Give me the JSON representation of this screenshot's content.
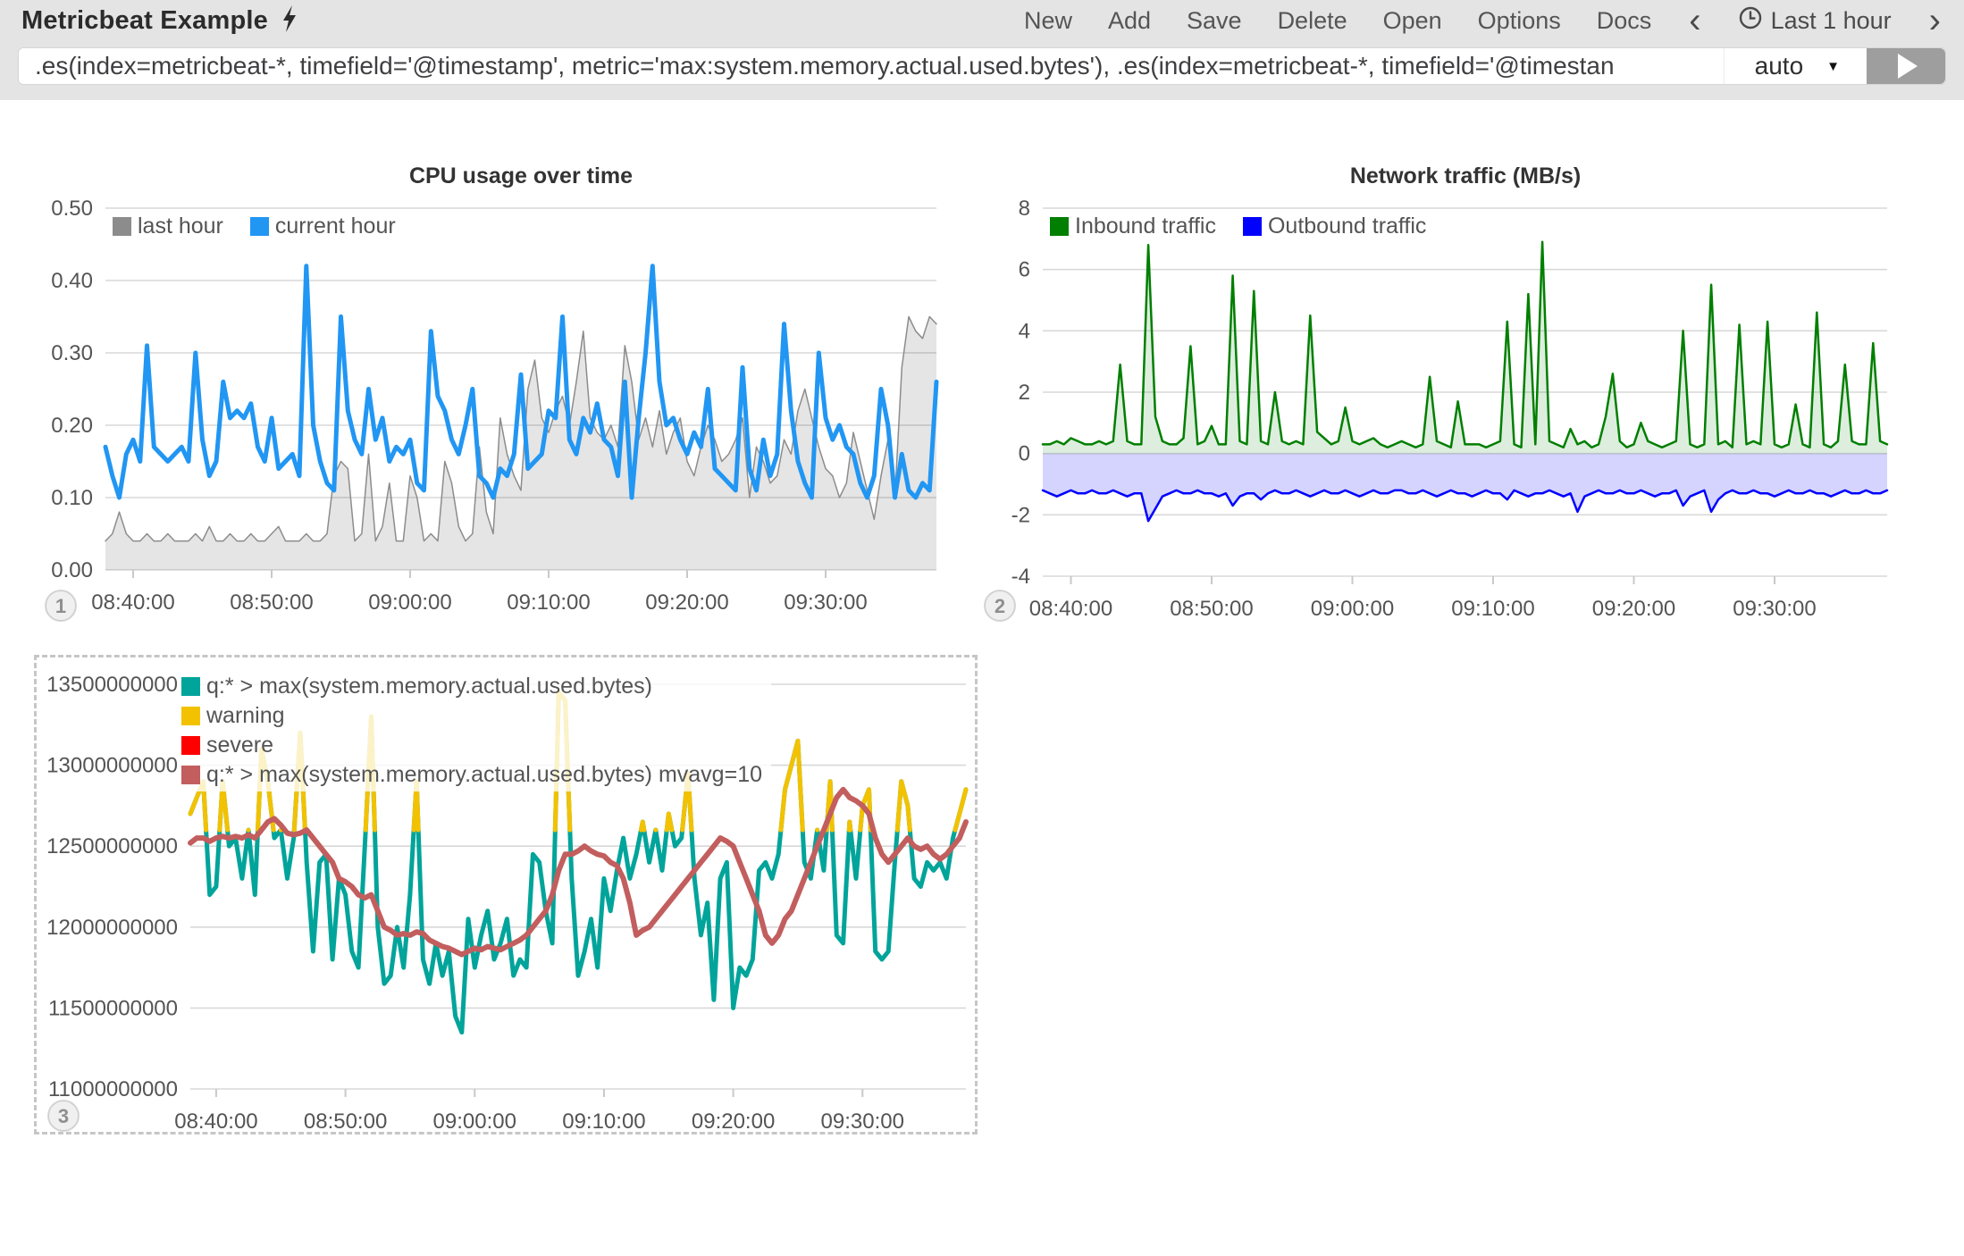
{
  "navbar": {
    "title": "Metricbeat Example",
    "menu": [
      {
        "label": "New"
      },
      {
        "label": "Add"
      },
      {
        "label": "Save"
      },
      {
        "label": "Delete"
      },
      {
        "label": "Open"
      },
      {
        "label": "Options"
      },
      {
        "label": "Docs"
      }
    ],
    "prev_arrow": "‹",
    "next_arrow": "›",
    "time_range": "Last 1 hour"
  },
  "query_bar": {
    "value": ".es(index=metricbeat-*, timefield='@timestamp', metric='max:system.memory.actual.used.bytes'), .es(index=metricbeat-*, timefield='@timestan",
    "interval": "auto",
    "caret": "▼"
  },
  "colors": {
    "header_bg": "#e4e4e4",
    "cpu_current": "#2196f3",
    "cpu_last_fill": "#e8e8e8",
    "cpu_last_stroke": "#8c8c8c",
    "inbound_green": "#007f00",
    "outbound_blue": "#0000ff",
    "memory_teal": "#00a49a",
    "warning_yellow": "#f2c200",
    "severe_red": "#ff0000",
    "mvavg_brick": "#c25e5e"
  },
  "chart_data": [
    {
      "type": "line",
      "panel_number": "1",
      "title": "CPU usage over time",
      "x_span_minutes": 60,
      "ylim": [
        0,
        0.5
      ],
      "yticks": [
        {
          "value": 0.5,
          "label": "0.50"
        },
        {
          "value": 0.4,
          "label": "0.40"
        },
        {
          "value": 0.3,
          "label": "0.30"
        },
        {
          "value": 0.2,
          "label": "0.20"
        },
        {
          "value": 0.1,
          "label": "0.10"
        },
        {
          "value": 0.0,
          "label": "0.00"
        }
      ],
      "xticks": [
        {
          "minute": 2,
          "label": "08:40:00"
        },
        {
          "minute": 12,
          "label": "08:50:00"
        },
        {
          "minute": 22,
          "label": "09:00:00"
        },
        {
          "minute": 32,
          "label": "09:10:00"
        },
        {
          "minute": 42,
          "label": "09:20:00"
        },
        {
          "minute": 52,
          "label": "09:30:00"
        }
      ],
      "legend_layout": "row",
      "legend": [
        {
          "label": "last hour",
          "color": "#8c8c8c"
        },
        {
          "label": "current hour",
          "color": "#2196f3"
        }
      ],
      "series": [
        {
          "name": "last hour",
          "type": "area",
          "color": "#8c8c8c",
          "fill": "rgba(0,0,0,0.10)",
          "width": 1.5,
          "values": [
            0.04,
            0.05,
            0.08,
            0.05,
            0.04,
            0.04,
            0.05,
            0.04,
            0.04,
            0.05,
            0.04,
            0.04,
            0.04,
            0.05,
            0.04,
            0.06,
            0.04,
            0.04,
            0.05,
            0.04,
            0.04,
            0.05,
            0.04,
            0.04,
            0.05,
            0.06,
            0.04,
            0.04,
            0.04,
            0.05,
            0.04,
            0.04,
            0.05,
            0.13,
            0.15,
            0.14,
            0.04,
            0.05,
            0.16,
            0.04,
            0.06,
            0.12,
            0.04,
            0.04,
            0.13,
            0.1,
            0.04,
            0.05,
            0.04,
            0.15,
            0.12,
            0.06,
            0.04,
            0.05,
            0.17,
            0.08,
            0.05,
            0.21,
            0.16,
            0.13,
            0.11,
            0.25,
            0.29,
            0.21,
            0.19,
            0.22,
            0.24,
            0.2,
            0.26,
            0.33,
            0.21,
            0.19,
            0.18,
            0.2,
            0.17,
            0.31,
            0.26,
            0.18,
            0.21,
            0.17,
            0.22,
            0.16,
            0.19,
            0.21,
            0.15,
            0.13,
            0.17,
            0.2,
            0.18,
            0.15,
            0.16,
            0.18,
            0.21,
            0.1,
            0.17,
            0.15,
            0.12,
            0.13,
            0.18,
            0.16,
            0.22,
            0.25,
            0.21,
            0.17,
            0.14,
            0.13,
            0.1,
            0.12,
            0.19,
            0.15,
            0.11,
            0.07,
            0.13,
            0.18,
            0.1,
            0.28,
            0.35,
            0.33,
            0.32,
            0.35,
            0.34
          ]
        },
        {
          "name": "current hour",
          "type": "line",
          "color": "#2196f3",
          "width": 5,
          "values": [
            0.17,
            0.13,
            0.1,
            0.16,
            0.18,
            0.15,
            0.31,
            0.17,
            0.16,
            0.15,
            0.16,
            0.17,
            0.15,
            0.3,
            0.18,
            0.13,
            0.15,
            0.26,
            0.21,
            0.22,
            0.21,
            0.23,
            0.17,
            0.15,
            0.21,
            0.14,
            0.15,
            0.16,
            0.13,
            0.42,
            0.2,
            0.15,
            0.12,
            0.11,
            0.35,
            0.22,
            0.18,
            0.16,
            0.25,
            0.18,
            0.21,
            0.15,
            0.17,
            0.16,
            0.18,
            0.12,
            0.11,
            0.33,
            0.24,
            0.22,
            0.18,
            0.16,
            0.2,
            0.25,
            0.13,
            0.12,
            0.1,
            0.14,
            0.13,
            0.16,
            0.27,
            0.14,
            0.15,
            0.16,
            0.22,
            0.21,
            0.35,
            0.18,
            0.16,
            0.21,
            0.19,
            0.23,
            0.18,
            0.17,
            0.13,
            0.26,
            0.1,
            0.21,
            0.3,
            0.42,
            0.26,
            0.2,
            0.21,
            0.18,
            0.16,
            0.19,
            0.17,
            0.25,
            0.14,
            0.13,
            0.12,
            0.11,
            0.28,
            0.14,
            0.11,
            0.18,
            0.13,
            0.16,
            0.34,
            0.22,
            0.15,
            0.12,
            0.1,
            0.3,
            0.21,
            0.18,
            0.2,
            0.17,
            0.16,
            0.12,
            0.1,
            0.13,
            0.25,
            0.2,
            0.1,
            0.16,
            0.11,
            0.1,
            0.12,
            0.11,
            0.26
          ]
        }
      ]
    },
    {
      "type": "area",
      "panel_number": "2",
      "title": "Network traffic (MB/s)",
      "x_span_minutes": 60,
      "ylim": [
        -4,
        8
      ],
      "yticks": [
        {
          "value": 8,
          "label": "8"
        },
        {
          "value": 6,
          "label": "6"
        },
        {
          "value": 4,
          "label": "4"
        },
        {
          "value": 2,
          "label": "2"
        },
        {
          "value": 0,
          "label": "0"
        },
        {
          "value": -2,
          "label": "-2"
        },
        {
          "value": -4,
          "label": "-4"
        }
      ],
      "xticks": [
        {
          "minute": 2,
          "label": "08:40:00"
        },
        {
          "minute": 12,
          "label": "08:50:00"
        },
        {
          "minute": 22,
          "label": "09:00:00"
        },
        {
          "minute": 32,
          "label": "09:10:00"
        },
        {
          "minute": 42,
          "label": "09:20:00"
        },
        {
          "minute": 52,
          "label": "09:30:00"
        }
      ],
      "legend_layout": "row",
      "legend": [
        {
          "label": "Inbound traffic",
          "color": "#007f00"
        },
        {
          "label": "Outbound traffic",
          "color": "#0000ff"
        }
      ],
      "series": [
        {
          "name": "Inbound traffic",
          "type": "area",
          "color": "#007f00",
          "fill": "rgba(0,127,0,0.13)",
          "width": 2.5,
          "values": [
            0.3,
            0.3,
            0.4,
            0.3,
            0.5,
            0.4,
            0.3,
            0.3,
            0.4,
            0.3,
            0.4,
            2.9,
            0.4,
            0.3,
            0.3,
            6.8,
            1.2,
            0.4,
            0.3,
            0.3,
            0.5,
            3.5,
            0.3,
            0.4,
            0.9,
            0.3,
            0.3,
            5.8,
            0.4,
            0.3,
            5.3,
            0.4,
            0.3,
            2.0,
            0.4,
            0.3,
            0.4,
            0.3,
            4.5,
            0.7,
            0.5,
            0.3,
            0.4,
            1.5,
            0.4,
            0.3,
            0.4,
            0.5,
            0.3,
            0.2,
            0.3,
            0.4,
            0.3,
            0.2,
            0.3,
            2.5,
            0.4,
            0.3,
            0.2,
            1.7,
            0.3,
            0.3,
            0.3,
            0.2,
            0.3,
            0.4,
            4.3,
            0.3,
            0.2,
            5.2,
            0.3,
            6.9,
            0.4,
            0.3,
            0.2,
            0.8,
            0.3,
            0.4,
            0.2,
            0.3,
            1.2,
            2.6,
            0.4,
            0.2,
            0.3,
            1.0,
            0.4,
            0.3,
            0.2,
            0.3,
            0.4,
            4.0,
            0.3,
            0.2,
            0.3,
            5.5,
            0.3,
            0.4,
            0.2,
            4.2,
            0.3,
            0.4,
            0.3,
            4.3,
            0.3,
            0.2,
            0.3,
            1.6,
            0.3,
            0.2,
            4.6,
            0.3,
            0.2,
            0.4,
            2.9,
            0.4,
            0.3,
            0.3,
            3.6,
            0.4,
            0.3
          ]
        },
        {
          "name": "Outbound traffic",
          "type": "area",
          "color": "#0000ff",
          "fill": "rgba(0,0,255,0.17)",
          "width": 2.5,
          "values": [
            -1.2,
            -1.3,
            -1.4,
            -1.3,
            -1.2,
            -1.3,
            -1.3,
            -1.2,
            -1.3,
            -1.3,
            -1.2,
            -1.3,
            -1.4,
            -1.3,
            -1.3,
            -2.2,
            -1.8,
            -1.4,
            -1.3,
            -1.2,
            -1.3,
            -1.3,
            -1.2,
            -1.3,
            -1.3,
            -1.4,
            -1.3,
            -1.7,
            -1.4,
            -1.3,
            -1.3,
            -1.5,
            -1.3,
            -1.2,
            -1.3,
            -1.3,
            -1.2,
            -1.3,
            -1.4,
            -1.3,
            -1.2,
            -1.3,
            -1.3,
            -1.2,
            -1.3,
            -1.4,
            -1.3,
            -1.2,
            -1.3,
            -1.3,
            -1.2,
            -1.2,
            -1.3,
            -1.3,
            -1.2,
            -1.3,
            -1.4,
            -1.3,
            -1.2,
            -1.3,
            -1.3,
            -1.4,
            -1.3,
            -1.2,
            -1.3,
            -1.3,
            -1.5,
            -1.2,
            -1.3,
            -1.4,
            -1.3,
            -1.3,
            -1.2,
            -1.3,
            -1.4,
            -1.3,
            -1.9,
            -1.4,
            -1.3,
            -1.2,
            -1.3,
            -1.3,
            -1.2,
            -1.3,
            -1.3,
            -1.2,
            -1.3,
            -1.4,
            -1.3,
            -1.3,
            -1.2,
            -1.7,
            -1.4,
            -1.3,
            -1.2,
            -1.9,
            -1.5,
            -1.3,
            -1.2,
            -1.3,
            -1.3,
            -1.2,
            -1.3,
            -1.3,
            -1.4,
            -1.3,
            -1.2,
            -1.3,
            -1.3,
            -1.2,
            -1.3,
            -1.3,
            -1.4,
            -1.3,
            -1.2,
            -1.3,
            -1.3,
            -1.2,
            -1.3,
            -1.3,
            -1.2
          ]
        }
      ]
    },
    {
      "type": "line",
      "panel_number": "3",
      "title": "",
      "selected": true,
      "x_span_minutes": 60,
      "value_scale": 1000000000,
      "ylim": [
        11.0,
        13.5
      ],
      "yticks": [
        {
          "value": 13.5,
          "label": "13500000000"
        },
        {
          "value": 13.0,
          "label": "13000000000"
        },
        {
          "value": 12.5,
          "label": "12500000000"
        },
        {
          "value": 12.0,
          "label": "12000000000"
        },
        {
          "value": 11.5,
          "label": "11500000000"
        },
        {
          "value": 11.0,
          "label": "11000000000"
        }
      ],
      "xticks": [
        {
          "minute": 2,
          "label": "08:40:00"
        },
        {
          "minute": 12,
          "label": "08:50:00"
        },
        {
          "minute": 22,
          "label": "09:00:00"
        },
        {
          "minute": 32,
          "label": "09:10:00"
        },
        {
          "minute": 42,
          "label": "09:20:00"
        },
        {
          "minute": 52,
          "label": "09:30:00"
        }
      ],
      "legend_layout": "column",
      "legend": [
        {
          "label": "q:* > max(system.memory.actual.used.bytes)",
          "color": "#00a49a"
        },
        {
          "label": "warning",
          "color": "#f2c200"
        },
        {
          "label": "severe",
          "color": "#ff0000"
        },
        {
          "label": "q:* > max(system.memory.actual.used.bytes) mvavg=10",
          "color": "#c25e5e"
        }
      ],
      "warning_threshold": 12.6,
      "series": [
        {
          "name": "q:* > max(system.memory.actual.used.bytes)",
          "type": "line",
          "color": "#00a49a",
          "width": 5,
          "warning_threshold": 12.6,
          "warning_color": "#f2c200",
          "values": [
            12.7,
            12.8,
            12.9,
            12.2,
            12.25,
            12.9,
            12.5,
            12.55,
            12.3,
            12.6,
            12.2,
            13.1,
            12.9,
            12.55,
            12.6,
            12.3,
            12.55,
            13.2,
            12.4,
            11.85,
            12.4,
            12.45,
            11.8,
            12.3,
            12.2,
            11.85,
            11.75,
            12.5,
            13.3,
            12.0,
            11.65,
            11.7,
            12.0,
            11.75,
            12.2,
            12.9,
            11.8,
            11.65,
            11.9,
            11.7,
            11.85,
            11.45,
            11.35,
            12.05,
            11.75,
            11.95,
            12.1,
            11.8,
            11.9,
            12.05,
            11.7,
            11.8,
            11.75,
            12.45,
            12.4,
            12.1,
            11.9,
            13.45,
            13.4,
            12.3,
            11.7,
            11.85,
            12.05,
            11.75,
            12.3,
            12.1,
            12.35,
            12.55,
            12.3,
            12.45,
            12.65,
            12.4,
            12.6,
            12.35,
            12.7,
            12.5,
            12.55,
            12.95,
            12.3,
            11.95,
            12.15,
            11.55,
            12.3,
            12.4,
            11.5,
            11.75,
            11.7,
            11.8,
            12.35,
            12.4,
            12.3,
            12.45,
            12.85,
            13.0,
            13.15,
            12.4,
            12.3,
            12.6,
            12.35,
            12.9,
            11.95,
            11.9,
            12.65,
            12.3,
            12.75,
            12.85,
            11.85,
            11.8,
            11.85,
            12.4,
            12.9,
            12.75,
            12.3,
            12.25,
            12.4,
            12.35,
            12.4,
            12.3,
            12.55,
            12.7,
            12.85
          ]
        },
        {
          "name": "q:* > max(system.memory.actual.used.bytes) mvavg=10",
          "type": "line",
          "color": "#c25e5e",
          "width": 6,
          "values": [
            12.52,
            12.55,
            12.55,
            12.53,
            12.55,
            12.56,
            12.55,
            12.56,
            12.55,
            12.57,
            12.55,
            12.6,
            12.65,
            12.67,
            12.63,
            12.58,
            12.57,
            12.58,
            12.6,
            12.55,
            12.5,
            12.45,
            12.4,
            12.3,
            12.28,
            12.25,
            12.2,
            12.18,
            12.2,
            12.1,
            12.0,
            11.98,
            11.95,
            11.96,
            11.95,
            11.97,
            11.96,
            11.92,
            11.9,
            11.88,
            11.87,
            11.85,
            11.83,
            11.85,
            11.87,
            11.86,
            11.88,
            11.87,
            11.86,
            11.88,
            11.9,
            11.92,
            11.95,
            12.0,
            12.05,
            12.1,
            12.2,
            12.35,
            12.45,
            12.45,
            12.47,
            12.5,
            12.47,
            12.45,
            12.44,
            12.4,
            12.38,
            12.3,
            12.15,
            11.95,
            11.98,
            12.0,
            12.05,
            12.1,
            12.15,
            12.2,
            12.25,
            12.3,
            12.35,
            12.4,
            12.45,
            12.5,
            12.55,
            12.53,
            12.5,
            12.4,
            12.3,
            12.2,
            12.1,
            11.95,
            11.9,
            11.95,
            12.05,
            12.1,
            12.2,
            12.3,
            12.4,
            12.5,
            12.6,
            12.7,
            12.8,
            12.85,
            12.8,
            12.78,
            12.75,
            12.7,
            12.55,
            12.45,
            12.4,
            12.45,
            12.5,
            12.55,
            12.5,
            12.48,
            12.5,
            12.45,
            12.42,
            12.45,
            12.5,
            12.55,
            12.65
          ]
        }
      ]
    }
  ]
}
